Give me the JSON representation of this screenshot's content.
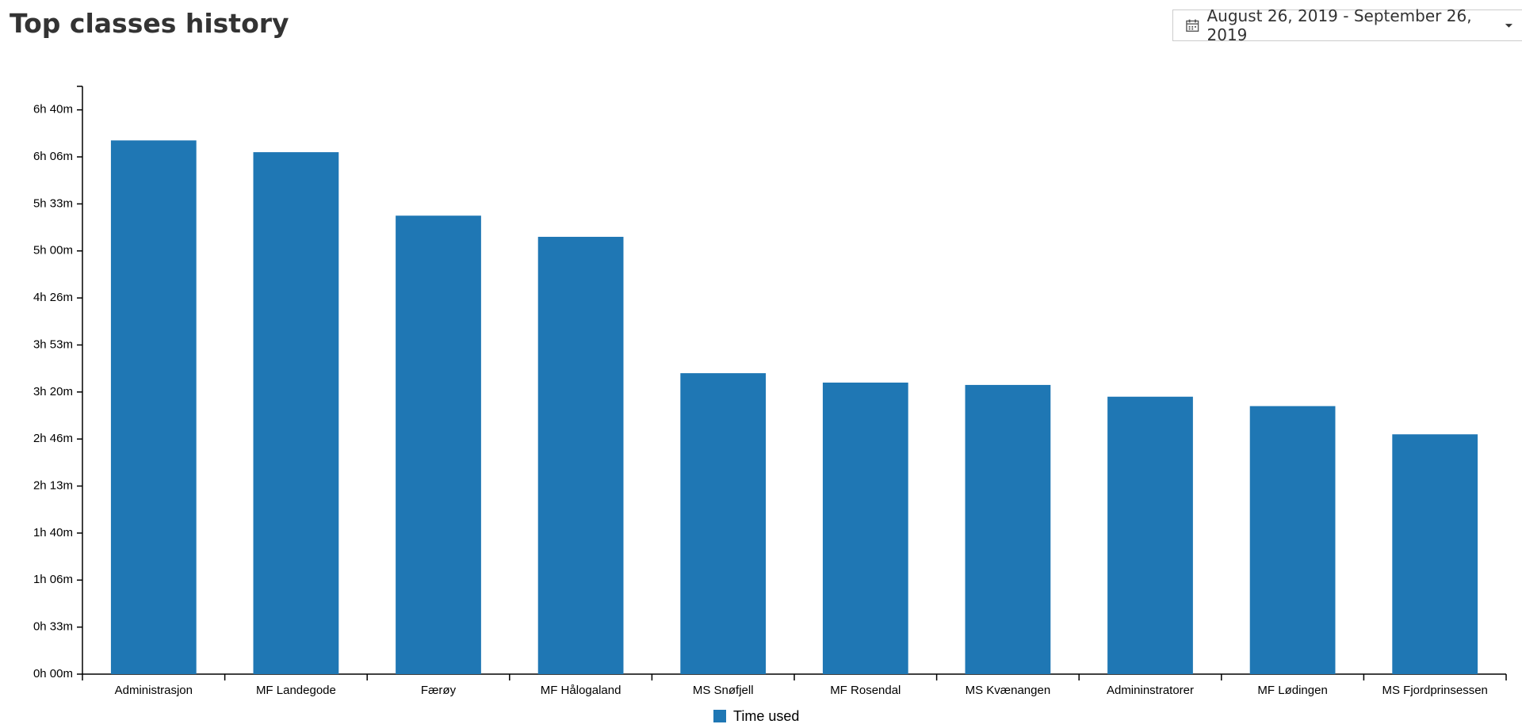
{
  "date_range": "August 26, 2019 - September 26, 2019",
  "chart_data": {
    "type": "bar",
    "title": "Top classes history",
    "categories": [
      "Administrasjon",
      "MF Landegode",
      "Færøy",
      "MF Hålogaland",
      "MS Snøfjell",
      "MF Rosendal",
      "MS Kvænangen",
      "Admininstratorer",
      "MF Lødingen",
      "MS Fjordprinsessen"
    ],
    "series": [
      {
        "name": "Time used",
        "color": "#1f77b4",
        "values": [
          22700,
          22200,
          19500,
          18600,
          12800,
          12400,
          12300,
          11800,
          11400,
          10200
        ]
      }
    ],
    "ylim": [
      0,
      25000
    ],
    "yticks": [
      {
        "value": 0,
        "label": "0h 00m"
      },
      {
        "value": 2000,
        "label": "0h 33m"
      },
      {
        "value": 4000,
        "label": "1h 06m"
      },
      {
        "value": 6000,
        "label": "1h 40m"
      },
      {
        "value": 8000,
        "label": "2h 13m"
      },
      {
        "value": 10000,
        "label": "2h 46m"
      },
      {
        "value": 12000,
        "label": "3h 20m"
      },
      {
        "value": 14000,
        "label": "3h 53m"
      },
      {
        "value": 16000,
        "label": "4h 26m"
      },
      {
        "value": 18000,
        "label": "5h 00m"
      },
      {
        "value": 20000,
        "label": "5h 33m"
      },
      {
        "value": 22000,
        "label": "6h 06m"
      },
      {
        "value": 24000,
        "label": "6h 40m"
      }
    ],
    "grid": false,
    "legend": "bottom"
  }
}
